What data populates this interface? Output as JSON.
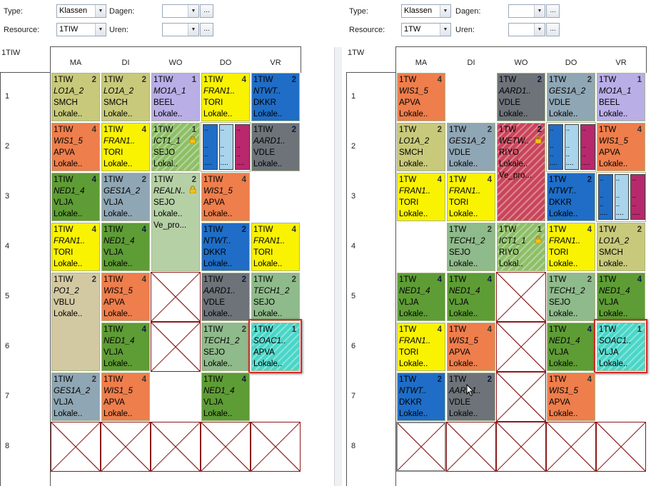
{
  "left": {
    "type_label": "Type:",
    "type_value": "Klassen",
    "dagen_label": "Dagen:",
    "resource_label": "Resource:",
    "resource_value": "1TIW",
    "uren_label": "Uren:",
    "dots": "...",
    "corner": "1TIW",
    "days": [
      "MA",
      "DI",
      "WO",
      "DO",
      "VR"
    ],
    "rows": [
      "1",
      "2",
      "3",
      "4",
      "5",
      "6",
      "7",
      "8"
    ],
    "cells": [
      {
        "c": 0,
        "r": 0,
        "h": 1,
        "cls": "1TIW",
        "cnt": "2",
        "sub": "LO1A_2",
        "t1": "SMCH",
        "t2": "Lokale..",
        "bg": "#c8c97a"
      },
      {
        "c": 1,
        "r": 0,
        "h": 1,
        "cls": "1TIW",
        "cnt": "2",
        "sub": "LO1A_2",
        "t1": "SMCH",
        "t2": "Lokale..",
        "bg": "#c8c97a"
      },
      {
        "c": 2,
        "r": 0,
        "h": 1,
        "cls": "1TIW",
        "cnt": "1",
        "sub": "MO1A_1",
        "t1": "BEEL",
        "t2": "Lokale..",
        "bg": "#b9aee6"
      },
      {
        "c": 3,
        "r": 0,
        "h": 1,
        "cls": "1TIW",
        "cnt": "4",
        "sub": "FRAN1..",
        "t1": "TORI",
        "t2": "Lokale..",
        "bg": "#f9f200"
      },
      {
        "c": 4,
        "r": 0,
        "h": 1,
        "cls": "1TIW",
        "cnt": "2",
        "sub": "NTWT..",
        "t1": "DKKR",
        "t2": "Lokale..",
        "bg": "#1f6dc6"
      },
      {
        "c": 0,
        "r": 1,
        "h": 1,
        "cls": "1TIW",
        "cnt": "4",
        "sub": "WIS1_5",
        "t1": "APVA",
        "t2": "Lokale..",
        "bg": "#ee7e4c"
      },
      {
        "c": 1,
        "r": 1,
        "h": 1,
        "cls": "1TIW",
        "cnt": "4",
        "sub": "FRAN1..",
        "t1": "TORI",
        "t2": "Lokale..",
        "bg": "#f9f200"
      },
      {
        "c": 2,
        "r": 1,
        "h": 1,
        "cls": "1TIW",
        "cnt": "1",
        "sub": "ICT1_1",
        "t1": "SEJO",
        "t2": "Lokal..",
        "bg": "#8ebf67",
        "hatch": true,
        "lock": true
      },
      {
        "c": 4,
        "r": 1,
        "h": 1,
        "cls": "1TIW",
        "cnt": "2",
        "sub": "AARD1..",
        "t1": "VDLE",
        "t2": "Lokale..",
        "bg": "#6d7379"
      },
      {
        "c": 0,
        "r": 2,
        "h": 1,
        "cls": "1TIW",
        "cnt": "4",
        "sub": "NED1_4",
        "t1": "VLJA",
        "t2": "Lokale..",
        "bg": "#5e9c35"
      },
      {
        "c": 1,
        "r": 2,
        "h": 1,
        "cls": "1TIW",
        "cnt": "2",
        "sub": "GES1A_2",
        "t1": "VLJA",
        "t2": "Lokale..",
        "bg": "#8fa6b4"
      },
      {
        "c": 2,
        "r": 2,
        "h": 2,
        "cls": "1TIW",
        "cnt": "2",
        "sub": "REALN..",
        "t1": "SEJO",
        "t2": "Lokale..",
        "t3": "Ve_pro...",
        "bg": "#b6d0a6",
        "lock": true
      },
      {
        "c": 3,
        "r": 2,
        "h": 1,
        "cls": "1TIW",
        "cnt": "4",
        "sub": "WIS1_5",
        "t1": "APVA",
        "t2": "Lokale..",
        "bg": "#ee7e4c"
      },
      {
        "c": 0,
        "r": 3,
        "h": 1,
        "cls": "1TIW",
        "cnt": "4",
        "sub": "FRAN1..",
        "t1": "TORI",
        "t2": "Lokale..",
        "bg": "#f9f200"
      },
      {
        "c": 1,
        "r": 3,
        "h": 1,
        "cls": "1TIW",
        "cnt": "4",
        "sub": "NED1_4",
        "t1": "VLJA",
        "t2": "Lokale..",
        "bg": "#5e9c35"
      },
      {
        "c": 3,
        "r": 3,
        "h": 1,
        "cls": "1TIW",
        "cnt": "2",
        "sub": "NTWT..",
        "t1": "DKKR",
        "t2": "Lokale..",
        "bg": "#1f6dc6"
      },
      {
        "c": 4,
        "r": 3,
        "h": 1,
        "cls": "1TIW",
        "cnt": "4",
        "sub": "FRAN1..",
        "t1": "TORI",
        "t2": "Lokale..",
        "bg": "#f9f200"
      },
      {
        "c": 0,
        "r": 4,
        "h": 2,
        "cls": "1TIW",
        "cnt": "2",
        "sub": "PO1_2",
        "t1": "VBLU",
        "t2": "Lokale..",
        "bg": "#d2c9a3"
      },
      {
        "c": 1,
        "r": 4,
        "h": 1,
        "cls": "1TIW",
        "cnt": "4",
        "sub": "WIS1_5",
        "t1": "APVA",
        "t2": "Lokale..",
        "bg": "#ee7e4c"
      },
      {
        "c": 3,
        "r": 4,
        "h": 1,
        "cls": "1TIW",
        "cnt": "2",
        "sub": "AARD1..",
        "t1": "VDLE",
        "t2": "Lokale..",
        "bg": "#6d7379"
      },
      {
        "c": 4,
        "r": 4,
        "h": 1,
        "cls": "1TIW",
        "cnt": "2",
        "sub": "TECH1_2",
        "t1": "SEJO",
        "t2": "Lokale..",
        "bg": "#8fba8b"
      },
      {
        "c": 1,
        "r": 5,
        "h": 1,
        "cls": "1TIW",
        "cnt": "4",
        "sub": "NED1_4",
        "t1": "VLJA",
        "t2": "Lokale..",
        "bg": "#5e9c35"
      },
      {
        "c": 3,
        "r": 5,
        "h": 1,
        "cls": "1TIW",
        "cnt": "2",
        "sub": "TECH1_2",
        "t1": "SEJO",
        "t2": "Lokale..",
        "bg": "#8fba8b"
      },
      {
        "c": 4,
        "r": 5,
        "h": 1,
        "cls": "1TIW",
        "cnt": "1",
        "sub": "SOAC1..",
        "t1": "APVA",
        "t2": "Lokale..",
        "bg": "#49d6c8",
        "hatch": true,
        "selected": true
      },
      {
        "c": 0,
        "r": 6,
        "h": 1,
        "cls": "1TIW",
        "cnt": "2",
        "sub": "GES1A_2",
        "t1": "VLJA",
        "t2": "Lokale..",
        "bg": "#8fa6b4"
      },
      {
        "c": 1,
        "r": 6,
        "h": 1,
        "cls": "1TIW",
        "cnt": "4",
        "sub": "WIS1_5",
        "t1": "APVA",
        "t2": "Lokale..",
        "bg": "#ee7e4c"
      },
      {
        "c": 3,
        "r": 6,
        "h": 1,
        "cls": "1TIW",
        "cnt": "4",
        "sub": "NED1_4",
        "t1": "VLJA",
        "t2": "Lokale..",
        "bg": "#5e9c35"
      }
    ],
    "minis": [
      {
        "c": 3,
        "r": 1,
        "bars": [
          "#1f6dc6",
          "#a9d4ec",
          "#b7286c"
        ]
      }
    ],
    "blocked": [
      {
        "c": 2,
        "r": 4
      },
      {
        "c": 2,
        "r": 5
      },
      {
        "c": 0,
        "r": 7
      },
      {
        "c": 1,
        "r": 7
      },
      {
        "c": 2,
        "r": 7
      },
      {
        "c": 3,
        "r": 7
      },
      {
        "c": 4,
        "r": 7
      }
    ]
  },
  "right": {
    "type_label": "Type:",
    "type_value": "Klassen",
    "dagen_label": "Dagen:",
    "resource_label": "Resource:",
    "resource_value": "1TW",
    "uren_label": "Uren:",
    "dots": "...",
    "corner": "1TW",
    "days": [
      "MA",
      "DI",
      "WO",
      "DO",
      "VR"
    ],
    "rows": [
      "1",
      "2",
      "3",
      "4",
      "5",
      "6",
      "7",
      "8"
    ],
    "cells": [
      {
        "c": 0,
        "r": 0,
        "h": 1,
        "cls": "1TW",
        "cnt": "4",
        "sub": "WIS1_5",
        "t1": "APVA",
        "t2": "Lokale..",
        "bg": "#ee7e4c"
      },
      {
        "c": 2,
        "r": 0,
        "h": 1,
        "cls": "1TW",
        "cnt": "2",
        "sub": "AARD1..",
        "t1": "VDLE",
        "t2": "Lokale..",
        "bg": "#6d7379"
      },
      {
        "c": 3,
        "r": 0,
        "h": 1,
        "cls": "1TW",
        "cnt": "2",
        "sub": "GES1A_2",
        "t1": "VDLE",
        "t2": "Lokale..",
        "bg": "#8fa6b4"
      },
      {
        "c": 4,
        "r": 0,
        "h": 1,
        "cls": "1TW",
        "cnt": "1",
        "sub": "MO1A_1",
        "t1": "BEEL",
        "t2": "Lokale..",
        "bg": "#b9aee6"
      },
      {
        "c": 0,
        "r": 1,
        "h": 1,
        "cls": "1TW",
        "cnt": "2",
        "sub": "LO1A_2",
        "t1": "SMCH",
        "t2": "Lokale..",
        "bg": "#c8c97a"
      },
      {
        "c": 1,
        "r": 1,
        "h": 1,
        "cls": "1TW",
        "cnt": "2",
        "sub": "GES1A_2",
        "t1": "VDLE",
        "t2": "Lokale..",
        "bg": "#8fa6b4"
      },
      {
        "c": 2,
        "r": 1,
        "h": 2,
        "cls": "1TW",
        "cnt": "2",
        "sub": "WETW..",
        "t1": "RIYO",
        "t2": "Lokale..",
        "t3": "Ve_pro...",
        "bg": "#c9455a",
        "hatch": true,
        "lock": true
      },
      {
        "c": 4,
        "r": 1,
        "h": 1,
        "cls": "1TW",
        "cnt": "4",
        "sub": "WIS1_5",
        "t1": "APVA",
        "t2": "Lokale..",
        "bg": "#ee7e4c"
      },
      {
        "c": 0,
        "r": 2,
        "h": 1,
        "cls": "1TW",
        "cnt": "4",
        "sub": "FRAN1..",
        "t1": "TORI",
        "t2": "Lokale..",
        "bg": "#f9f200"
      },
      {
        "c": 1,
        "r": 2,
        "h": 1,
        "cls": "1TW",
        "cnt": "4",
        "sub": "FRAN1..",
        "t1": "TORI",
        "t2": "Lokale..",
        "bg": "#f9f200"
      },
      {
        "c": 3,
        "r": 2,
        "h": 1,
        "cls": "1TW",
        "cnt": "2",
        "sub": "NTWT..",
        "t1": "DKKR",
        "t2": "Lokale..",
        "bg": "#1f6dc6"
      },
      {
        "c": 1,
        "r": 3,
        "h": 1,
        "cls": "1TW",
        "cnt": "2",
        "sub": "TECH1_2",
        "t1": "SEJO",
        "t2": "Lokale..",
        "bg": "#8fba8b"
      },
      {
        "c": 2,
        "r": 3,
        "h": 1,
        "cls": "1TW",
        "cnt": "1",
        "sub": "ICT1_1",
        "t1": "RIYO",
        "t2": "Lokal..",
        "bg": "#8ebf67",
        "hatch": true,
        "lock": true
      },
      {
        "c": 3,
        "r": 3,
        "h": 1,
        "cls": "1TW",
        "cnt": "4",
        "sub": "FRAN1..",
        "t1": "TORI",
        "t2": "Lokale..",
        "bg": "#f9f200"
      },
      {
        "c": 4,
        "r": 3,
        "h": 1,
        "cls": "1TW",
        "cnt": "2",
        "sub": "LO1A_2",
        "t1": "SMCH",
        "t2": "Lokale..",
        "bg": "#c8c97a"
      },
      {
        "c": 0,
        "r": 4,
        "h": 1,
        "cls": "1TW",
        "cnt": "4",
        "sub": "NED1_4",
        "t1": "VLJA",
        "t2": "Lokale..",
        "bg": "#5e9c35"
      },
      {
        "c": 1,
        "r": 4,
        "h": 1,
        "cls": "1TW",
        "cnt": "4",
        "sub": "NED1_4",
        "t1": "VLJA",
        "t2": "Lokale..",
        "bg": "#5e9c35"
      },
      {
        "c": 3,
        "r": 4,
        "h": 1,
        "cls": "1TW",
        "cnt": "2",
        "sub": "TECH1_2",
        "t1": "SEJO",
        "t2": "Lokale..",
        "bg": "#8fba8b"
      },
      {
        "c": 4,
        "r": 4,
        "h": 1,
        "cls": "1TW",
        "cnt": "4",
        "sub": "NED1_4",
        "t1": "VLJA",
        "t2": "Lokale..",
        "bg": "#5e9c35"
      },
      {
        "c": 0,
        "r": 5,
        "h": 1,
        "cls": "1TW",
        "cnt": "4",
        "sub": "FRAN1..",
        "t1": "TORI",
        "t2": "Lokale..",
        "bg": "#f9f200"
      },
      {
        "c": 1,
        "r": 5,
        "h": 1,
        "cls": "1TW",
        "cnt": "4",
        "sub": "WIS1_5",
        "t1": "APVA",
        "t2": "Lokale..",
        "bg": "#ee7e4c"
      },
      {
        "c": 3,
        "r": 5,
        "h": 1,
        "cls": "1TW",
        "cnt": "4",
        "sub": "NED1_4",
        "t1": "VLJA",
        "t2": "Lokale..",
        "bg": "#5e9c35"
      },
      {
        "c": 4,
        "r": 5,
        "h": 1,
        "cls": "1TW",
        "cnt": "1",
        "sub": "SOAC1..",
        "t1": "VLJA",
        "t2": "Lokale..",
        "bg": "#49d6c8",
        "hatch": true,
        "selected": true
      },
      {
        "c": 0,
        "r": 6,
        "h": 1,
        "cls": "1TW",
        "cnt": "2",
        "sub": "NTWT..",
        "t1": "DKKR",
        "t2": "Lokale..",
        "bg": "#1f6dc6"
      },
      {
        "c": 1,
        "r": 6,
        "h": 1,
        "cls": "1TW",
        "cnt": "2",
        "sub": "AARD1..",
        "t1": "VDLE",
        "t2": "Lokale..",
        "bg": "#6d7379"
      },
      {
        "c": 3,
        "r": 6,
        "h": 1,
        "cls": "1TW",
        "cnt": "4",
        "sub": "WIS1_5",
        "t1": "APVA",
        "t2": "Lokale..",
        "bg": "#ee7e4c"
      }
    ],
    "minis": [
      {
        "c": 3,
        "r": 1,
        "bars": [
          "#1f6dc6",
          "#a9d4ec",
          "#b7286c"
        ]
      },
      {
        "c": 4,
        "r": 2,
        "bars": [
          "#1f6dc6",
          "#a9d4ec",
          "#b7286c"
        ]
      }
    ],
    "blocked": [
      {
        "c": 2,
        "r": 4
      },
      {
        "c": 2,
        "r": 5
      },
      {
        "c": 2,
        "r": 6
      },
      {
        "c": 0,
        "r": 7,
        "grey": true
      },
      {
        "c": 1,
        "r": 7
      },
      {
        "c": 2,
        "r": 7
      },
      {
        "c": 3,
        "r": 7
      },
      {
        "c": 4,
        "r": 7
      }
    ]
  },
  "icons": {
    "dropdown": "chevron-down-icon",
    "lock": "lock-icon",
    "cursor": "mouse-cursor-icon"
  }
}
